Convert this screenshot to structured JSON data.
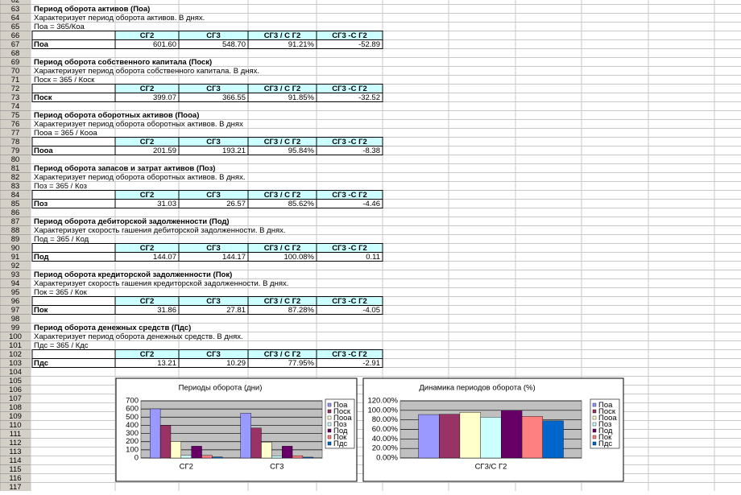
{
  "row_numbers": [
    62,
    63,
    64,
    65,
    66,
    67,
    68,
    69,
    70,
    71,
    72,
    73,
    74,
    75,
    76,
    77,
    78,
    79,
    80,
    81,
    82,
    83,
    84,
    85,
    86,
    87,
    88,
    89,
    90,
    91,
    92,
    93,
    94,
    95,
    96,
    97,
    98,
    99,
    100,
    101,
    102,
    103,
    104,
    105,
    106,
    107,
    108,
    109,
    110,
    111,
    112,
    113,
    114,
    115,
    116,
    117
  ],
  "sections": [
    {
      "title": "Период оборота активов (Поа)",
      "description": "Характеризует период оборота активов. В днях.",
      "formula": "Поа = 365/Коа",
      "header": [
        "СГ2",
        "СГ3",
        "СГ3 / С Г2",
        "СГ3 -С Г2"
      ],
      "row": {
        "label": "Поа",
        "values": [
          "601.60",
          "548.70",
          "91.21%",
          "-52.89"
        ]
      }
    },
    {
      "title": "Период оборота собственного капитала (Поск)",
      "description": "Характеризует период оборота собственного капитала. В днях.",
      "formula": "Поск = 365 / Коск",
      "header": [
        "СГ2",
        "СГ3",
        "СГ3 / С Г2",
        "СГ3 -С Г2"
      ],
      "row": {
        "label": "Поск",
        "values": [
          "399.07",
          "366.55",
          "91.85%",
          "-32.52"
        ]
      }
    },
    {
      "title": "Период оборота оборотных активов (Пооа)",
      "description": "Характеризует период оборота оборотных активов. В днях",
      "formula": "Пооа = 365 / Кооа",
      "header": [
        "СГ2",
        "СГ3",
        "СГ3 / С Г2",
        "СГ3 -С Г2"
      ],
      "row": {
        "label": "Пооа",
        "values": [
          "201.59",
          "193.21",
          "95.84%",
          "-8.38"
        ]
      }
    },
    {
      "title": "Период оборота запасов и затрат  активов (Поз)",
      "description": "Характеризует период оборота оборотных активов. В днях.",
      "formula": "Поз = 365 / Коз",
      "header": [
        "СГ2",
        "СГ3",
        "СГ3 / С Г2",
        "СГ3 -С Г2"
      ],
      "row": {
        "label": "Поз",
        "values": [
          "31.03",
          "26.57",
          "85.62%",
          "-4.46"
        ]
      }
    },
    {
      "title": "Период оборота дебиторской задолженности  (Под)",
      "description": "Характеризует скорость гашения дебиторской задолженности. В днях.",
      "formula": "Под = 365 / Код",
      "header": [
        "СГ2",
        "СГ3",
        "СГ3 / С Г2",
        "СГ3 -С Г2"
      ],
      "row": {
        "label": "Под",
        "values": [
          "144.07",
          "144.17",
          "100.08%",
          "0.11"
        ]
      }
    },
    {
      "title": "Период оборота кредиторской задолженности  (Пок)",
      "description": "Характеризует скорость гашения кредиторской задолженности. В днях.",
      "formula": "Пок = 365 / Кок",
      "header": [
        "СГ2",
        "СГ3",
        "СГ3 / С Г2",
        "СГ3 -С Г2"
      ],
      "row": {
        "label": "Пок",
        "values": [
          "31.86",
          "27.81",
          "87.28%",
          "-4.05"
        ]
      }
    },
    {
      "title": "Период оборота  денежных средств  (Пдс)",
      "description": "Характеризует период оборота  денежных средств. В днях.",
      "formula": "Пдс = 365 / Кдс",
      "header": [
        "СГ2",
        "СГ3",
        "СГ3 / С Г2",
        "СГ3 -С Г2"
      ],
      "row": {
        "label": "Пдс",
        "values": [
          "13.21",
          "10.29",
          "77.95%",
          "-2.91"
        ]
      }
    }
  ],
  "charts": [
    {
      "type": "bar",
      "title": "Периоды оборота (дни)",
      "categories": [
        "СГ2",
        "СГ3"
      ],
      "ylim": [
        0,
        700
      ],
      "yticks": [
        0,
        100,
        200,
        300,
        400,
        500,
        600,
        700
      ],
      "grid": true,
      "series": [
        {
          "name": "Поа",
          "color": "#9999ff",
          "values": [
            601.6,
            548.7
          ]
        },
        {
          "name": "Поск",
          "color": "#993366",
          "values": [
            399.07,
            366.55
          ]
        },
        {
          "name": "Пооа",
          "color": "#ffffcc",
          "values": [
            201.59,
            193.21
          ]
        },
        {
          "name": "Поз",
          "color": "#ccffff",
          "values": [
            31.03,
            26.57
          ]
        },
        {
          "name": "Под",
          "color": "#660066",
          "values": [
            144.07,
            144.17
          ]
        },
        {
          "name": "Пок",
          "color": "#ff8080",
          "values": [
            31.86,
            27.81
          ]
        },
        {
          "name": "Пдс",
          "color": "#0066cc",
          "values": [
            13.21,
            10.29
          ]
        }
      ]
    },
    {
      "type": "bar",
      "title": "Динамика периодов оборота (%)",
      "categories": [
        "СГ3/С Г2"
      ],
      "ylim": [
        0,
        120
      ],
      "yticks": [
        {
          "value": 0,
          "label": "0.00%"
        },
        {
          "value": 20,
          "label": "20.00%"
        },
        {
          "value": 40,
          "label": "40.00%"
        },
        {
          "value": 60,
          "label": "60.00%"
        },
        {
          "value": 80,
          "label": "80.00%"
        },
        {
          "value": 100,
          "label": "100.00%"
        },
        {
          "value": 120,
          "label": "120.00%"
        }
      ],
      "grid": true,
      "series": [
        {
          "name": "Поа",
          "color": "#9999ff",
          "values": [
            91.21
          ]
        },
        {
          "name": "Поск",
          "color": "#993366",
          "values": [
            91.85
          ]
        },
        {
          "name": "Пооа",
          "color": "#ffffcc",
          "values": [
            95.84
          ]
        },
        {
          "name": "Поз",
          "color": "#ccffff",
          "values": [
            85.62
          ]
        },
        {
          "name": "Под",
          "color": "#660066",
          "values": [
            100.08
          ]
        },
        {
          "name": "Пок",
          "color": "#ff8080",
          "values": [
            87.28
          ]
        },
        {
          "name": "Пдс",
          "color": "#0066cc",
          "values": [
            77.95
          ]
        }
      ]
    }
  ]
}
